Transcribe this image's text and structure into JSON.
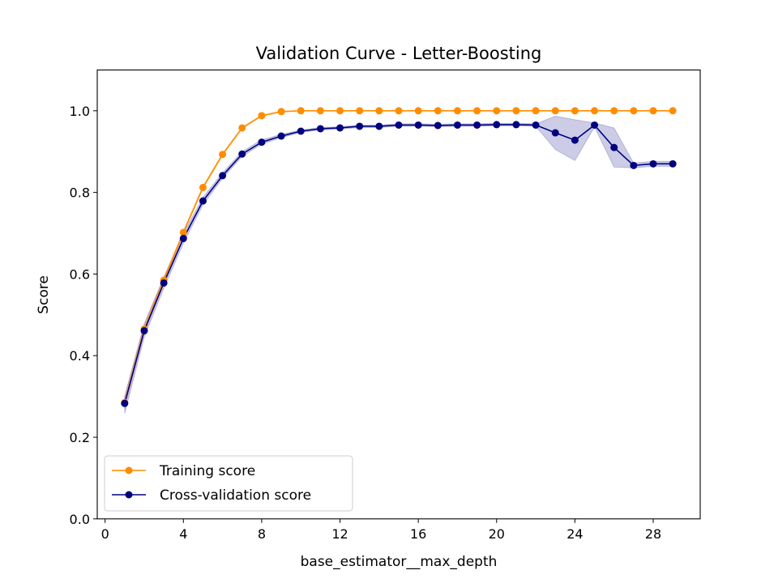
{
  "chart_data": {
    "type": "line",
    "title": "Validation Curve - Letter-Boosting",
    "xlabel": "base_estimator__max_depth",
    "ylabel": "Score",
    "xlim": [
      -0.4,
      30.4
    ],
    "ylim": [
      0.0,
      1.1
    ],
    "xticks": [
      0,
      4,
      8,
      12,
      16,
      20,
      24,
      28
    ],
    "yticks": [
      0.0,
      0.2,
      0.4,
      0.6,
      0.8,
      1.0
    ],
    "xtick_labels": [
      "0",
      "4",
      "8",
      "12",
      "16",
      "20",
      "24",
      "28"
    ],
    "ytick_labels": [
      "0.0",
      "0.2",
      "0.4",
      "0.6",
      "0.8",
      "1.0"
    ],
    "legend_position": "lower-left",
    "grid": false,
    "x": [
      1,
      2,
      3,
      4,
      5,
      6,
      7,
      8,
      9,
      10,
      11,
      12,
      13,
      14,
      15,
      16,
      17,
      18,
      19,
      20,
      21,
      22,
      23,
      24,
      25,
      26,
      27,
      28,
      29
    ],
    "series": [
      {
        "name": "Training score",
        "color": "#ff8c00",
        "values": [
          0.285,
          0.465,
          0.585,
          0.702,
          0.812,
          0.893,
          0.958,
          0.988,
          0.998,
          1.0,
          1.0,
          1.0,
          1.0,
          1.0,
          1.0,
          1.0,
          1.0,
          1.0,
          1.0,
          1.0,
          1.0,
          1.0,
          1.0,
          1.0,
          1.0,
          1.0,
          1.0,
          1.0,
          1.0
        ],
        "band_lower": [
          0.27,
          0.455,
          0.578,
          0.697,
          0.808,
          0.89,
          0.956,
          0.986,
          0.997,
          1.0,
          1.0,
          1.0,
          1.0,
          1.0,
          1.0,
          1.0,
          1.0,
          1.0,
          1.0,
          1.0,
          1.0,
          1.0,
          1.0,
          1.0,
          1.0,
          1.0,
          1.0,
          1.0,
          1.0
        ],
        "band_upper": [
          0.3,
          0.475,
          0.592,
          0.707,
          0.816,
          0.896,
          0.96,
          0.99,
          0.999,
          1.0,
          1.0,
          1.0,
          1.0,
          1.0,
          1.0,
          1.0,
          1.0,
          1.0,
          1.0,
          1.0,
          1.0,
          1.0,
          1.0,
          1.0,
          1.0,
          1.0,
          1.0,
          1.0,
          1.0
        ]
      },
      {
        "name": "Cross-validation score",
        "color": "#000080",
        "values": [
          0.283,
          0.461,
          0.578,
          0.687,
          0.779,
          0.841,
          0.894,
          0.923,
          0.938,
          0.95,
          0.956,
          0.958,
          0.962,
          0.962,
          0.965,
          0.965,
          0.964,
          0.965,
          0.965,
          0.966,
          0.966,
          0.965,
          0.946,
          0.928,
          0.965,
          0.91,
          0.866,
          0.87,
          0.87
        ],
        "band_lower": [
          0.258,
          0.445,
          0.565,
          0.675,
          0.77,
          0.834,
          0.888,
          0.918,
          0.934,
          0.947,
          0.953,
          0.955,
          0.959,
          0.959,
          0.962,
          0.962,
          0.961,
          0.962,
          0.962,
          0.963,
          0.963,
          0.962,
          0.905,
          0.878,
          0.96,
          0.862,
          0.86,
          0.864,
          0.864
        ],
        "band_upper": [
          0.3,
          0.478,
          0.592,
          0.699,
          0.788,
          0.848,
          0.9,
          0.929,
          0.942,
          0.953,
          0.959,
          0.961,
          0.965,
          0.965,
          0.968,
          0.968,
          0.967,
          0.968,
          0.968,
          0.969,
          0.969,
          0.968,
          0.987,
          0.978,
          0.97,
          0.958,
          0.872,
          0.876,
          0.876
        ]
      }
    ]
  }
}
